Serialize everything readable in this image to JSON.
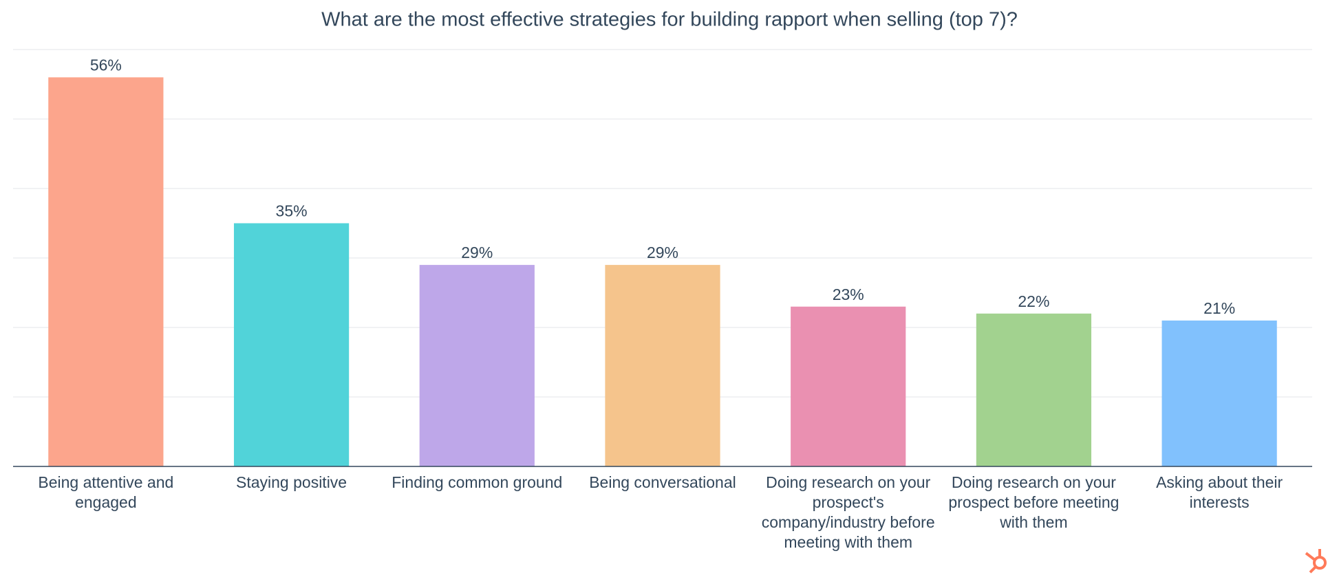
{
  "chart_data": {
    "type": "bar",
    "title": "What are the most effective strategies for building rapport when selling (top 7)?",
    "categories": [
      "Being attentive and engaged",
      "Staying positive",
      "Finding common ground",
      "Being conversational",
      "Doing research on your prospect's company/industry before meeting with them",
      "Doing research on your prospect before meeting with them",
      "Asking about their interests"
    ],
    "values": [
      56,
      35,
      29,
      29,
      23,
      22,
      21
    ],
    "value_labels": [
      "56%",
      "35%",
      "29%",
      "29%",
      "23%",
      "22%",
      "21%"
    ],
    "colors": [
      "#fca58c",
      "#51d3d9",
      "#bea7e9",
      "#f5c48c",
      "#ea90b1",
      "#a2d28f",
      "#81c1fd"
    ],
    "ylim": [
      0,
      60
    ],
    "yticks": [
      0,
      10,
      20,
      30,
      40,
      50,
      60
    ],
    "grid": true
  }
}
